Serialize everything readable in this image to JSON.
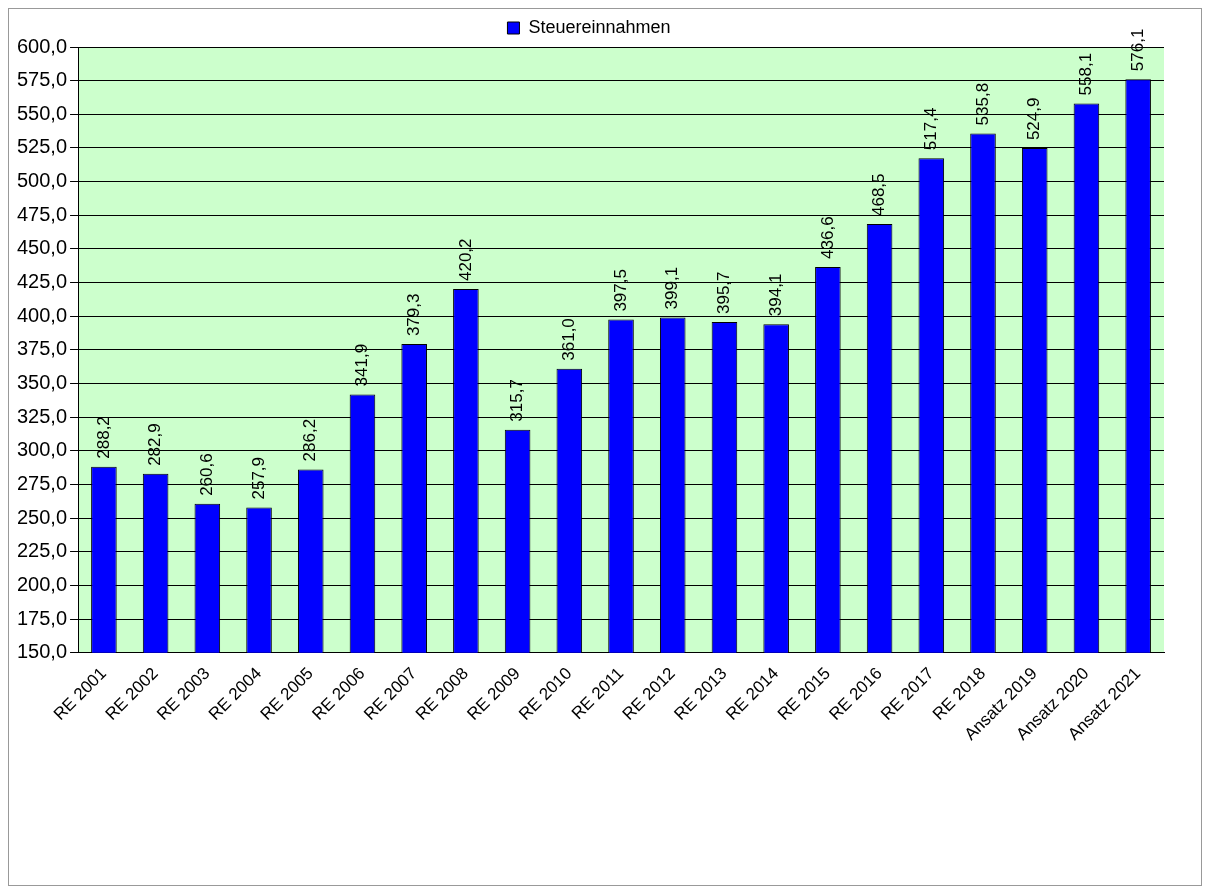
{
  "chart_data": {
    "type": "bar",
    "categories": [
      "RE 2001",
      "RE 2002",
      "RE 2003",
      "RE 2004",
      "RE 2005",
      "RE 2006",
      "RE 2007",
      "RE 2008",
      "RE 2009",
      "RE 2010",
      "RE 2011",
      "RE 2012",
      "RE 2013",
      "RE 2014",
      "RE 2015",
      "RE 2016",
      "RE 2017",
      "RE 2018",
      "Ansatz 2019",
      "Ansatz 2020",
      "Ansatz 2021"
    ],
    "series": [
      {
        "name": "Steuereinnahmen",
        "color": "#0000ff",
        "values": [
          288.2,
          282.9,
          260.6,
          257.9,
          286.2,
          341.9,
          379.3,
          420.2,
          315.7,
          361.0,
          397.5,
          399.1,
          395.7,
          394.1,
          436.6,
          468.5,
          517.4,
          535.8,
          524.9,
          558.1,
          576.1
        ],
        "value_labels": [
          "288,2",
          "282,9",
          "260,6",
          "257,9",
          "286,2",
          "341,9",
          "379,3",
          "420,2",
          "315,7",
          "361,0",
          "397,5",
          "399,1",
          "395,7",
          "394,1",
          "436,6",
          "468,5",
          "517,4",
          "535,8",
          "524,9",
          "558,1",
          "576,1"
        ]
      }
    ],
    "ylim": [
      150,
      600
    ],
    "yticks": [
      {
        "value": 150,
        "label": "150,0"
      },
      {
        "value": 175,
        "label": "175,0"
      },
      {
        "value": 200,
        "label": "200,0"
      },
      {
        "value": 225,
        "label": "225,0"
      },
      {
        "value": 250,
        "label": "250,0"
      },
      {
        "value": 275,
        "label": "275,0"
      },
      {
        "value": 300,
        "label": "300,0"
      },
      {
        "value": 325,
        "label": "325,0"
      },
      {
        "value": 350,
        "label": "350,0"
      },
      {
        "value": 375,
        "label": "375,0"
      },
      {
        "value": 400,
        "label": "400,0"
      },
      {
        "value": 425,
        "label": "425,0"
      },
      {
        "value": 450,
        "label": "450,0"
      },
      {
        "value": 475,
        "label": "475,0"
      },
      {
        "value": 500,
        "label": "500,0"
      },
      {
        "value": 525,
        "label": "525,0"
      },
      {
        "value": 550,
        "label": "550,0"
      },
      {
        "value": 575,
        "label": "575,0"
      },
      {
        "value": 600,
        "label": "600,0"
      }
    ],
    "grid": "y",
    "legend": "top"
  }
}
